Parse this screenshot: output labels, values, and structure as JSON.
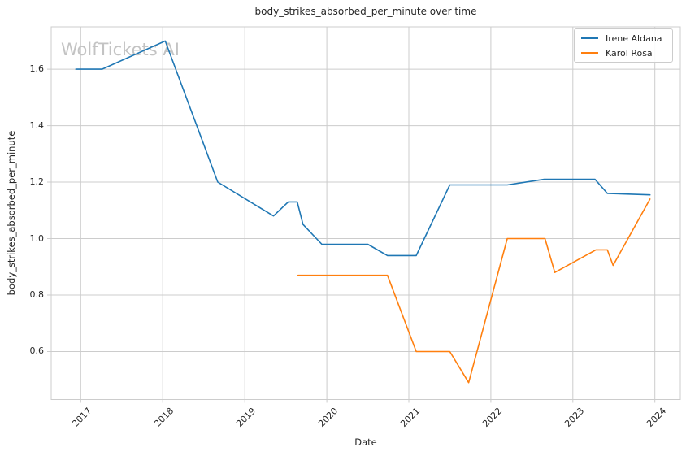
{
  "watermark": "WolfTickets AI",
  "style": {
    "grid_color": "#cccccc",
    "spine_color": "#cccccc",
    "text_color": "#262626",
    "watermark_color": "#c3c3c3",
    "background_color": "#ffffff"
  },
  "chart_data": {
    "type": "line",
    "title": "body_strikes_absorbed_per_minute over time",
    "xlabel": "Date",
    "ylabel": "body_strikes_absorbed_per_minute",
    "grid": true,
    "legend_position": "upper right",
    "xlim": [
      2016.64,
      2024.31
    ],
    "ylim": [
      0.43,
      1.75
    ],
    "xticks": {
      "values": [
        2017,
        2018,
        2019,
        2020,
        2021,
        2022,
        2023,
        2024
      ],
      "labels": [
        "2017",
        "2018",
        "2019",
        "2020",
        "2021",
        "2022",
        "2023",
        "2024"
      ]
    },
    "yticks": {
      "values": [
        0.6,
        0.8,
        1.0,
        1.2,
        1.4,
        1.6
      ],
      "labels": [
        "0.6",
        "0.8",
        "1.0",
        "1.2",
        "1.4",
        "1.6"
      ]
    },
    "series": [
      {
        "name": "Irene Aldana",
        "color": "#1f77b4",
        "x": [
          2016.94,
          2017.26,
          2018.03,
          2018.67,
          2019.35,
          2019.53,
          2019.64,
          2019.71,
          2019.94,
          2020.5,
          2020.74,
          2021.09,
          2021.5,
          2022.2,
          2022.65,
          2023.27,
          2023.42,
          2023.94
        ],
        "y": [
          1.6,
          1.6,
          1.7,
          1.2,
          1.08,
          1.13,
          1.13,
          1.05,
          0.98,
          0.98,
          0.94,
          0.94,
          1.19,
          1.19,
          1.21,
          1.21,
          1.16,
          1.155
        ]
      },
      {
        "name": "Karol Rosa",
        "color": "#ff7f0e",
        "x": [
          2019.65,
          2020.74,
          2021.09,
          2021.5,
          2021.73,
          2022.2,
          2022.66,
          2022.78,
          2023.28,
          2023.42,
          2023.49,
          2023.94
        ],
        "y": [
          0.87,
          0.87,
          0.6,
          0.6,
          0.49,
          1.0,
          1.0,
          0.88,
          0.96,
          0.96,
          0.905,
          1.14
        ]
      }
    ]
  }
}
